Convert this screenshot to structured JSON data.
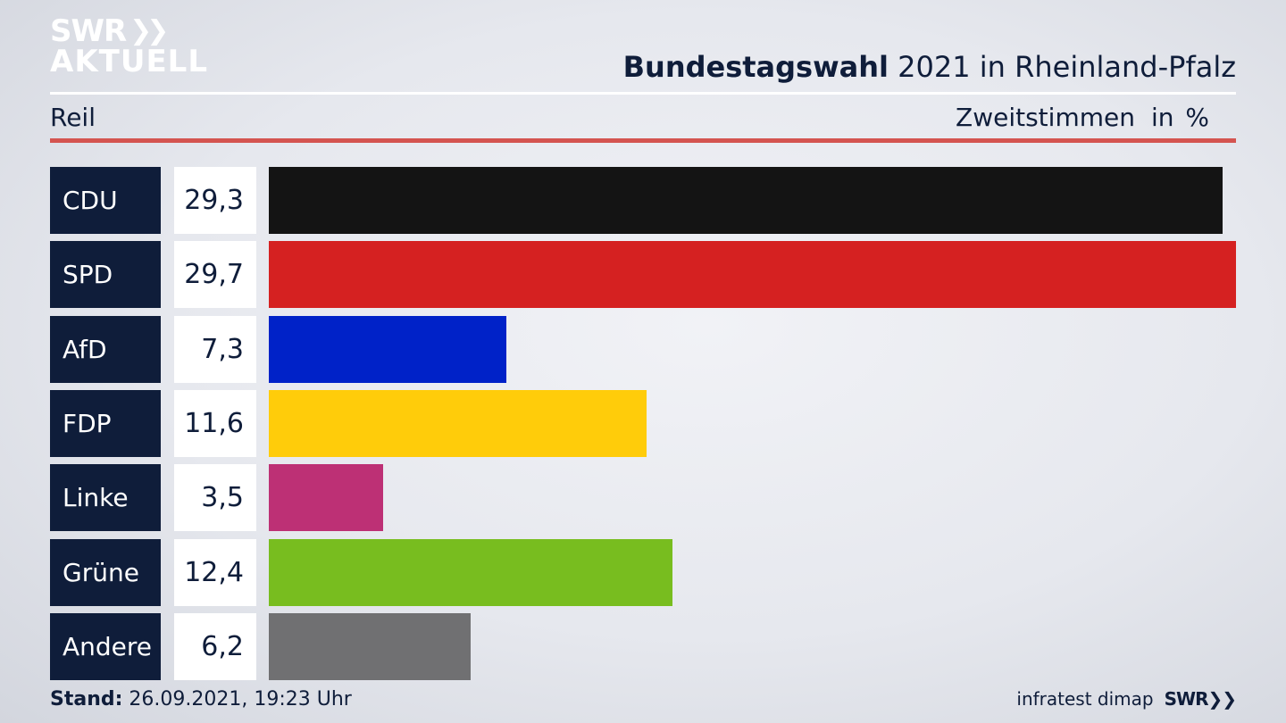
{
  "header": {
    "logo_line1": "SWR",
    "logo_line2": "AKTUELL",
    "title_bold": "Bundestagswahl",
    "title_rest": " 2021 in Rheinland-Pfalz",
    "region": "Reil",
    "metric": "Zweitstimmen",
    "unit": "in %"
  },
  "chart_data": {
    "type": "bar",
    "orientation": "horizontal",
    "categories": [
      "CDU",
      "SPD",
      "AfD",
      "FDP",
      "Linke",
      "Grüne",
      "Andere"
    ],
    "values": [
      29.3,
      29.7,
      7.3,
      11.6,
      3.5,
      12.4,
      6.2
    ],
    "value_labels": [
      "29,3",
      "29,7",
      "7,3",
      "11,6",
      "3,5",
      "12,4",
      "6,2"
    ],
    "colors": [
      "#141414",
      "#d52121",
      "#0022c8",
      "#ffcc0a",
      "#bd3075",
      "#78bd1f",
      "#707072"
    ],
    "title": "Bundestagswahl 2021 in Rheinland-Pfalz",
    "xlim": [
      0,
      29.7
    ]
  },
  "footer": {
    "stand_label": "Stand:",
    "stand_value": " 26.09.2021, 19:23 Uhr",
    "source": "infratest dimap",
    "brand": "SWR"
  }
}
